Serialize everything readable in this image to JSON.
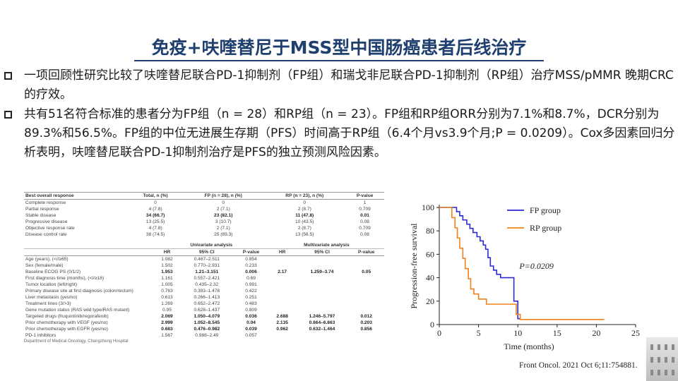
{
  "title": "免疫+呋喹替尼于MSS型中国肠癌患者后线治疗",
  "bullets": [
    "一项回顾性研究比较了呋喹替尼联合PD-1抑制剂（FP组）和瑞戈非尼联合PD-1抑制剂（RP组）治疗MSS/pMMR 晚期CRC的疗效。",
    "共有51名符合标准的患者分为FP组（n = 28）和RP组（n = 23）。FP组和RP组ORR分别为7.1%和8.7%，DCR分别为89.3%和56.5%。FP组的中位无进展生存期（PFS）时间高于RP组（6.4个月vs3.9个月;P = 0.0209）。Cox多因素回归分析表明，呋喹替尼联合PD-1抑制剂治疗是PFS的独立预测风险因素。"
  ],
  "response_table": {
    "headers": [
      "Best overall response",
      "Total, n (%)",
      "FP (n = 28), n (%)",
      "RP (n = 23), n (%)",
      "P-value"
    ],
    "rows": [
      [
        "Complete response",
        "0",
        "0",
        "0",
        "1"
      ],
      [
        "Partial response",
        "4 (7.8)",
        "2 (7.1)",
        "2 (8.7)",
        "0.709"
      ],
      [
        "Stable disease",
        "34 (66.7)",
        "23 (82.1)",
        "11 (47.8)",
        "0.01"
      ],
      [
        "Progressive disease",
        "13 (25.5)",
        "3 (10.7)",
        "10 (43.5)",
        "0.08"
      ],
      [
        "Objective response rate",
        "4 (7.8)",
        "2 (7.1)",
        "2 (8.7)",
        "0.709"
      ],
      [
        "Disease control rate",
        "38 (74.5)",
        "25 (89.3)",
        "13 (56.5)",
        "0.08"
      ]
    ]
  },
  "cox_table": {
    "group_headers": [
      "Univariate analysis",
      "Multivariate analysis"
    ],
    "col_headers": [
      "",
      "HR",
      "95% CI",
      "P-value",
      "HR",
      "95% CI",
      "P-value"
    ],
    "rows": [
      [
        "Age (years), (<//≥65)",
        "1.082",
        "0.467–2.511",
        "0.854",
        "",
        "",
        ""
      ],
      [
        "Sex (female/male)",
        "1.502",
        "0.770–2.931",
        "0.233",
        "",
        "",
        ""
      ],
      [
        "Baseline ECOG PS (0/1/2)",
        "1.953",
        "1.21–3.151",
        "0.006",
        "2.17",
        "1.259–3.74",
        "0.05"
      ],
      [
        "First diagnosis time (months), (<//≥18)",
        "1.161",
        "0.557–2.421",
        "0.69",
        "",
        "",
        ""
      ],
      [
        "Tumor location (left/right)",
        "1.005",
        "0.435–2.32",
        "0.991",
        "",
        "",
        ""
      ],
      [
        "Primary disease site at first diagnosis (colon/rectum)",
        "0.763",
        "0.393–1.478",
        "0.422",
        "",
        "",
        ""
      ],
      [
        "Liver metastasis (yes/no)",
        "0.613",
        "0.266–1.413",
        "0.251",
        "",
        "",
        ""
      ],
      [
        "Treatment lines (3/>3)",
        "1.269",
        "0.652–2.472",
        "0.483",
        "",
        "",
        ""
      ],
      [
        "Gene mutation status (RAS wild type/RAS mutant)",
        "0.95",
        "0.628–1.437",
        "0.809",
        "",
        "",
        ""
      ],
      [
        "Targeted drugs (fruquintinib/regorafenib)",
        "2.069",
        "1.050–4.079",
        "0.036",
        "2.688",
        "1.246–5.797",
        "0.012"
      ],
      [
        "Prior chemotherapy with VEGF (yes/no)",
        "2.999",
        "1.052–8.545",
        "0.04",
        "2.135",
        "0.664–6.863",
        "0.203"
      ],
      [
        "Prior chemotherapy with EGFR (yes/no)",
        "0.683",
        "0.476–0.982",
        "0.039",
        "0.962",
        "0.632–1.464",
        "0.856"
      ],
      [
        "PD-1 inhibitors",
        "1.567",
        "0.988–2.49",
        "0.057",
        "",
        "",
        ""
      ]
    ],
    "bold_rows": [
      2,
      9,
      10,
      11
    ],
    "footnote": "Department of Medical Oncology, Changzheng Hospital"
  },
  "chart_data": {
    "type": "line",
    "step": true,
    "xlabel": "Time (months)",
    "ylabel": "Progression-free survival",
    "xlim": [
      0,
      25
    ],
    "ylim": [
      0,
      100
    ],
    "xticks": [
      0,
      5,
      10,
      15,
      20,
      25
    ],
    "yticks": [
      0,
      20,
      40,
      60,
      80,
      100
    ],
    "annotation": "P=0.0209",
    "legend_position": "top-right",
    "series": [
      {
        "name": "FP group",
        "color": "#2a2ad8",
        "x": [
          0,
          1.8,
          2.2,
          2.6,
          3.0,
          3.5,
          3.9,
          4.3,
          4.8,
          5.2,
          5.6,
          5.9,
          6.2,
          6.5,
          6.9,
          7.3,
          7.8,
          8.1,
          9.5,
          10.0,
          10.3
        ],
        "y": [
          100,
          100,
          96.4,
          92.9,
          89.3,
          85.7,
          82.1,
          78.6,
          75.0,
          71.4,
          67.9,
          64.3,
          57.1,
          50.0,
          46.4,
          42.9,
          40.0,
          40.0,
          20.0,
          5.0,
          5.0
        ]
      },
      {
        "name": "RP group",
        "color": "#f0811a",
        "x": [
          0,
          1.2,
          1.6,
          2.0,
          2.3,
          2.6,
          3.0,
          3.3,
          3.7,
          4.0,
          4.4,
          5.0,
          6.0,
          8.0,
          9.8,
          10.3,
          21.0
        ],
        "y": [
          100,
          100,
          91.3,
          82.6,
          73.9,
          65.2,
          56.5,
          47.8,
          39.1,
          30.4,
          26.1,
          21.7,
          17.4,
          17.4,
          8.7,
          4.3,
          4.3
        ]
      }
    ]
  },
  "citation": "Front Oncol. 2021 Oct 6;11:754881."
}
